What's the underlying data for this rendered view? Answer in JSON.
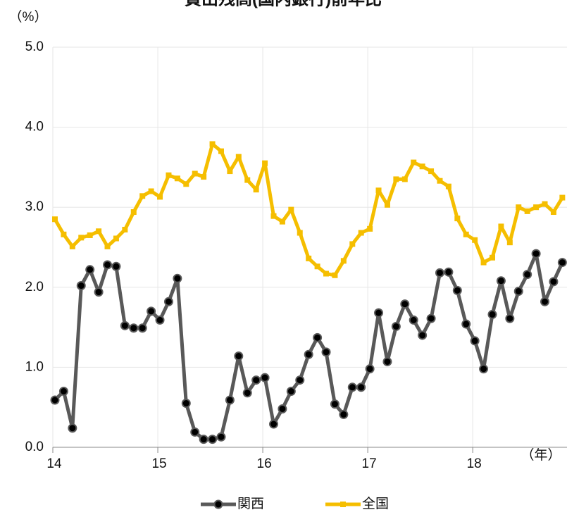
{
  "chart_data": {
    "type": "line",
    "title": "貸出残高(国内銀行)前年比",
    "y_label": "（%）",
    "x_label": "（年）",
    "categories": [
      "14",
      null,
      null,
      null,
      null,
      null,
      null,
      null,
      null,
      null,
      null,
      null,
      "15",
      null,
      null,
      null,
      null,
      null,
      null,
      null,
      null,
      null,
      null,
      null,
      "16",
      null,
      null,
      null,
      null,
      null,
      null,
      null,
      null,
      null,
      null,
      null,
      "17",
      null,
      null,
      null,
      null,
      null,
      null,
      null,
      null,
      null,
      null,
      null,
      "18",
      null,
      null,
      null,
      null,
      null,
      null,
      null,
      null,
      null,
      null
    ],
    "series": [
      {
        "name": "関西",
        "color": "#595959",
        "marker": "circle",
        "values": [
          0.59,
          0.7,
          0.24,
          2.02,
          2.22,
          1.94,
          2.28,
          2.26,
          1.52,
          1.49,
          1.49,
          1.7,
          1.59,
          1.82,
          2.11,
          0.55,
          0.19,
          0.1,
          0.1,
          0.13,
          0.59,
          1.14,
          0.68,
          0.84,
          0.87,
          0.29,
          0.48,
          0.7,
          0.84,
          1.16,
          1.37,
          1.19,
          0.54,
          0.41,
          0.75,
          0.75,
          0.98,
          1.68,
          1.07,
          1.51,
          1.79,
          1.59,
          1.4,
          1.61,
          2.18,
          2.19,
          1.96,
          1.54,
          1.33,
          0.98,
          1.66,
          2.08,
          1.61,
          1.95,
          2.16,
          2.42,
          1.82,
          2.07,
          2.31
        ]
      },
      {
        "name": "全国",
        "color": "#f5be00",
        "marker": "square",
        "values": [
          2.85,
          2.66,
          2.51,
          2.62,
          2.65,
          2.7,
          2.51,
          2.61,
          2.72,
          2.94,
          3.14,
          3.2,
          3.13,
          3.4,
          3.36,
          3.29,
          3.42,
          3.38,
          3.79,
          3.7,
          3.45,
          3.63,
          3.34,
          3.22,
          3.55,
          2.89,
          2.82,
          2.97,
          2.68,
          2.36,
          2.26,
          2.17,
          2.15,
          2.33,
          2.54,
          2.68,
          2.73,
          3.21,
          3.03,
          3.35,
          3.35,
          3.56,
          3.51,
          3.45,
          3.33,
          3.26,
          2.86,
          2.66,
          2.59,
          2.31,
          2.37,
          2.76,
          2.56,
          3.0,
          2.95,
          3.0,
          3.04,
          2.94,
          3.12
        ]
      }
    ],
    "ylim": [
      0,
      5
    ],
    "yticks": [
      {
        "value": 0,
        "label": "0.0"
      },
      {
        "value": 1,
        "label": "1.0"
      },
      {
        "value": 2,
        "label": "2.0"
      },
      {
        "value": 3,
        "label": "3.0"
      },
      {
        "value": 4,
        "label": "4.0"
      },
      {
        "value": 5,
        "label": "5.0"
      }
    ],
    "grid": true
  }
}
